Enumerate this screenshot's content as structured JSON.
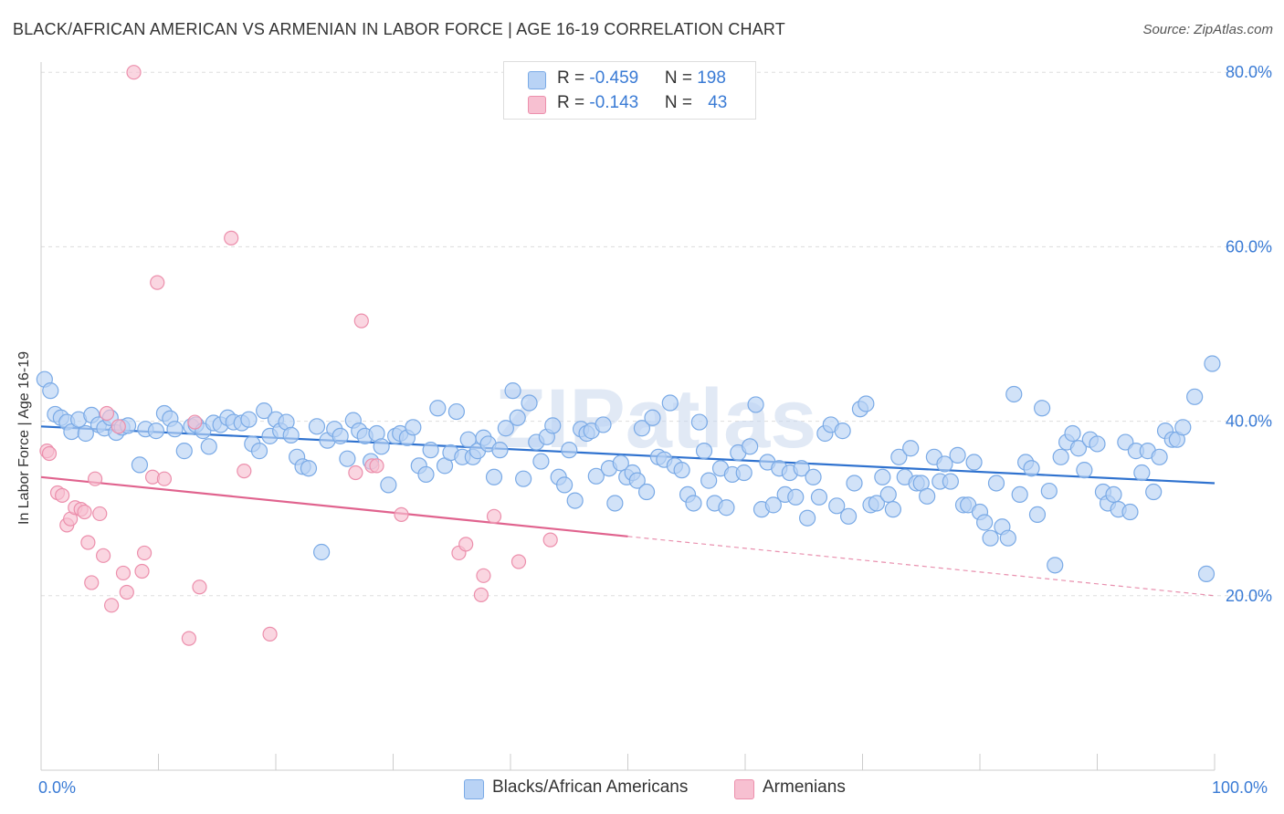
{
  "header": {
    "title": "BLACK/AFRICAN AMERICAN VS ARMENIAN IN LABOR FORCE | AGE 16-19 CORRELATION CHART",
    "source": "Source: ZipAtlas.com"
  },
  "watermark": "ZIPatlas",
  "legend": {
    "row1": {
      "r_label": "R = ",
      "r_value": "-0.459",
      "n_label": "N = ",
      "n_value": "198"
    },
    "row2": {
      "r_label": "R = ",
      "r_value": "-0.143",
      "n_label": "N = ",
      "n_value": "43"
    }
  },
  "colors": {
    "blue_fill": "#b9d3f5",
    "blue_stroke": "#7aaae6",
    "blue_line": "#2f72cf",
    "pink_fill": "#f7c0d1",
    "pink_stroke": "#ec8fac",
    "pink_line": "#e0638e",
    "grid": "#dddddd",
    "axis_text": "#3a7bd5"
  },
  "chart_data": {
    "type": "scatter",
    "title": "BLACK/AFRICAN AMERICAN VS ARMENIAN IN LABOR FORCE | AGE 16-19 CORRELATION CHART",
    "xlabel": "",
    "ylabel": "In Labor Force | Age 16-19",
    "xlim": [
      0,
      100
    ],
    "ylim": [
      0,
      82
    ],
    "x_tick_labels": [
      "0.0%",
      "100.0%"
    ],
    "y_ticks": [
      20,
      40,
      60,
      80
    ],
    "y_tick_labels": [
      "20.0%",
      "40.0%",
      "60.0%",
      "80.0%"
    ],
    "grid": true,
    "legend_position": "top-center",
    "series": [
      {
        "name": "Blacks/African Americans",
        "r": -0.459,
        "n": 198,
        "trend": {
          "x": [
            0,
            100
          ],
          "y": [
            39.4,
            32.9
          ]
        },
        "points": [
          [
            0.3,
            44.8
          ],
          [
            0.8,
            43.5
          ],
          [
            1.2,
            40.8
          ],
          [
            1.7,
            40.4
          ],
          [
            2.2,
            39.9
          ],
          [
            2.6,
            38.8
          ],
          [
            3.2,
            40.2
          ],
          [
            3.8,
            38.6
          ],
          [
            4.3,
            40.7
          ],
          [
            4.9,
            39.6
          ],
          [
            5.4,
            39.2
          ],
          [
            5.9,
            40.4
          ],
          [
            6.4,
            38.7
          ],
          [
            6.9,
            39.3
          ],
          [
            7.4,
            39.5
          ],
          [
            8.4,
            35.0
          ],
          [
            8.9,
            39.1
          ],
          [
            9.8,
            38.9
          ],
          [
            10.5,
            40.9
          ],
          [
            11.0,
            40.3
          ],
          [
            11.4,
            39.1
          ],
          [
            12.2,
            36.6
          ],
          [
            12.8,
            39.4
          ],
          [
            13.2,
            39.6
          ],
          [
            13.8,
            38.9
          ],
          [
            14.3,
            37.1
          ],
          [
            14.7,
            39.8
          ],
          [
            15.3,
            39.6
          ],
          [
            15.9,
            40.4
          ],
          [
            16.4,
            39.9
          ],
          [
            17.1,
            39.8
          ],
          [
            17.7,
            40.2
          ],
          [
            18.0,
            37.4
          ],
          [
            18.6,
            36.6
          ],
          [
            19.0,
            41.2
          ],
          [
            19.5,
            38.3
          ],
          [
            20.0,
            40.2
          ],
          [
            20.4,
            38.9
          ],
          [
            20.9,
            39.9
          ],
          [
            21.3,
            38.4
          ],
          [
            21.8,
            35.9
          ],
          [
            22.3,
            34.8
          ],
          [
            22.8,
            34.6
          ],
          [
            23.5,
            39.4
          ],
          [
            23.9,
            25.0
          ],
          [
            24.4,
            37.8
          ],
          [
            25.0,
            39.1
          ],
          [
            25.5,
            38.3
          ],
          [
            26.1,
            35.7
          ],
          [
            26.6,
            40.1
          ],
          [
            27.1,
            38.9
          ],
          [
            27.6,
            38.3
          ],
          [
            28.1,
            35.4
          ],
          [
            28.6,
            38.6
          ],
          [
            29.0,
            37.1
          ],
          [
            29.6,
            32.7
          ],
          [
            30.2,
            38.3
          ],
          [
            30.6,
            38.6
          ],
          [
            31.2,
            38.1
          ],
          [
            31.7,
            39.3
          ],
          [
            32.2,
            34.9
          ],
          [
            32.8,
            33.9
          ],
          [
            33.2,
            36.7
          ],
          [
            33.8,
            41.5
          ],
          [
            34.4,
            34.9
          ],
          [
            34.9,
            36.4
          ],
          [
            35.4,
            41.1
          ],
          [
            35.9,
            35.9
          ],
          [
            36.4,
            37.9
          ],
          [
            36.8,
            35.9
          ],
          [
            37.2,
            36.6
          ],
          [
            37.7,
            38.1
          ],
          [
            38.1,
            37.4
          ],
          [
            38.6,
            33.6
          ],
          [
            39.1,
            36.7
          ],
          [
            39.6,
            39.2
          ],
          [
            40.2,
            43.5
          ],
          [
            40.6,
            40.4
          ],
          [
            41.1,
            33.4
          ],
          [
            41.6,
            42.1
          ],
          [
            42.2,
            37.6
          ],
          [
            42.6,
            35.4
          ],
          [
            43.1,
            38.2
          ],
          [
            43.6,
            39.5
          ],
          [
            44.1,
            33.6
          ],
          [
            44.6,
            32.7
          ],
          [
            45.0,
            36.7
          ],
          [
            45.5,
            30.9
          ],
          [
            46.0,
            39.1
          ],
          [
            46.5,
            38.6
          ],
          [
            46.9,
            38.9
          ],
          [
            47.3,
            33.7
          ],
          [
            47.9,
            39.6
          ],
          [
            48.4,
            34.6
          ],
          [
            48.9,
            30.6
          ],
          [
            49.4,
            35.2
          ],
          [
            49.9,
            33.6
          ],
          [
            50.4,
            34.1
          ],
          [
            50.8,
            33.2
          ],
          [
            51.2,
            39.2
          ],
          [
            51.6,
            31.9
          ],
          [
            52.1,
            40.4
          ],
          [
            52.6,
            35.9
          ],
          [
            53.1,
            35.6
          ],
          [
            53.6,
            42.1
          ],
          [
            54.0,
            34.9
          ],
          [
            54.6,
            34.4
          ],
          [
            55.1,
            31.6
          ],
          [
            55.6,
            30.6
          ],
          [
            56.1,
            39.9
          ],
          [
            56.5,
            36.6
          ],
          [
            56.9,
            33.2
          ],
          [
            57.4,
            30.6
          ],
          [
            57.9,
            34.6
          ],
          [
            58.4,
            30.1
          ],
          [
            58.9,
            33.9
          ],
          [
            59.4,
            36.4
          ],
          [
            59.9,
            34.1
          ],
          [
            60.4,
            37.1
          ],
          [
            60.9,
            41.9
          ],
          [
            61.4,
            29.9
          ],
          [
            61.9,
            35.3
          ],
          [
            62.4,
            30.4
          ],
          [
            62.9,
            34.6
          ],
          [
            63.4,
            31.6
          ],
          [
            63.8,
            34.1
          ],
          [
            64.3,
            31.3
          ],
          [
            64.8,
            34.6
          ],
          [
            65.3,
            28.9
          ],
          [
            65.8,
            33.6
          ],
          [
            66.3,
            31.3
          ],
          [
            66.8,
            38.6
          ],
          [
            67.3,
            39.6
          ],
          [
            67.8,
            30.3
          ],
          [
            68.3,
            38.9
          ],
          [
            68.8,
            29.1
          ],
          [
            69.3,
            32.9
          ],
          [
            69.8,
            41.4
          ],
          [
            70.3,
            42.0
          ],
          [
            70.7,
            30.4
          ],
          [
            71.2,
            30.6
          ],
          [
            71.7,
            33.6
          ],
          [
            72.2,
            31.6
          ],
          [
            72.6,
            29.9
          ],
          [
            73.1,
            35.9
          ],
          [
            73.6,
            33.6
          ],
          [
            74.1,
            36.9
          ],
          [
            74.6,
            32.9
          ],
          [
            75.0,
            32.9
          ],
          [
            75.5,
            31.4
          ],
          [
            76.1,
            35.9
          ],
          [
            76.6,
            33.1
          ],
          [
            77.0,
            35.1
          ],
          [
            77.5,
            33.1
          ],
          [
            78.1,
            36.1
          ],
          [
            78.6,
            30.4
          ],
          [
            79.0,
            30.4
          ],
          [
            79.5,
            35.3
          ],
          [
            80.0,
            29.6
          ],
          [
            80.4,
            28.4
          ],
          [
            80.9,
            26.6
          ],
          [
            81.4,
            32.9
          ],
          [
            81.9,
            27.9
          ],
          [
            82.4,
            26.6
          ],
          [
            82.9,
            43.1
          ],
          [
            83.4,
            31.6
          ],
          [
            83.9,
            35.3
          ],
          [
            84.4,
            34.6
          ],
          [
            84.9,
            29.3
          ],
          [
            85.3,
            41.5
          ],
          [
            85.9,
            32.0
          ],
          [
            86.4,
            23.5
          ],
          [
            86.9,
            35.9
          ],
          [
            87.4,
            37.6
          ],
          [
            87.9,
            38.6
          ],
          [
            88.4,
            36.9
          ],
          [
            88.9,
            34.4
          ],
          [
            89.4,
            37.9
          ],
          [
            90.0,
            37.4
          ],
          [
            90.5,
            31.9
          ],
          [
            90.9,
            30.6
          ],
          [
            91.4,
            31.6
          ],
          [
            91.8,
            29.9
          ],
          [
            92.4,
            37.6
          ],
          [
            92.8,
            29.6
          ],
          [
            93.3,
            36.6
          ],
          [
            93.8,
            34.1
          ],
          [
            94.3,
            36.6
          ],
          [
            94.8,
            31.9
          ],
          [
            95.3,
            35.9
          ],
          [
            95.8,
            38.9
          ],
          [
            96.4,
            37.9
          ],
          [
            96.8,
            37.9
          ],
          [
            97.3,
            39.3
          ],
          [
            98.3,
            42.8
          ],
          [
            99.3,
            22.5
          ],
          [
            99.8,
            46.6
          ]
        ]
      },
      {
        "name": "Armenians",
        "r": -0.143,
        "n": 43,
        "trend": {
          "x": [
            0,
            50
          ],
          "y": [
            33.6,
            26.8
          ],
          "dashed_to": {
            "x": 100,
            "y": 20.0
          }
        },
        "points": [
          [
            0.5,
            36.6
          ],
          [
            0.7,
            36.3
          ],
          [
            1.4,
            31.8
          ],
          [
            1.8,
            31.5
          ],
          [
            2.2,
            28.1
          ],
          [
            2.5,
            28.8
          ],
          [
            2.9,
            30.1
          ],
          [
            3.4,
            29.9
          ],
          [
            3.7,
            29.6
          ],
          [
            4.0,
            26.1
          ],
          [
            4.3,
            21.5
          ],
          [
            4.6,
            33.4
          ],
          [
            5.0,
            29.4
          ],
          [
            5.3,
            24.6
          ],
          [
            5.6,
            40.9
          ],
          [
            6.0,
            18.9
          ],
          [
            6.6,
            39.4
          ],
          [
            7.0,
            22.6
          ],
          [
            7.3,
            20.4
          ],
          [
            7.9,
            80.0
          ],
          [
            8.6,
            22.8
          ],
          [
            8.8,
            24.9
          ],
          [
            9.5,
            33.6
          ],
          [
            9.9,
            55.9
          ],
          [
            10.5,
            33.4
          ],
          [
            12.6,
            15.1
          ],
          [
            13.1,
            39.9
          ],
          [
            13.5,
            21.0
          ],
          [
            16.2,
            61.0
          ],
          [
            17.3,
            34.3
          ],
          [
            19.5,
            15.6
          ],
          [
            26.8,
            34.1
          ],
          [
            27.3,
            51.5
          ],
          [
            28.2,
            34.9
          ],
          [
            28.6,
            34.9
          ],
          [
            30.7,
            29.3
          ],
          [
            35.6,
            24.9
          ],
          [
            36.2,
            25.9
          ],
          [
            37.5,
            20.1
          ],
          [
            37.7,
            22.3
          ],
          [
            38.6,
            29.1
          ],
          [
            40.7,
            23.9
          ],
          [
            43.4,
            26.4
          ]
        ]
      }
    ]
  },
  "bottom_legend": {
    "item1": "Blacks/African Americans",
    "item2": "Armenians"
  }
}
